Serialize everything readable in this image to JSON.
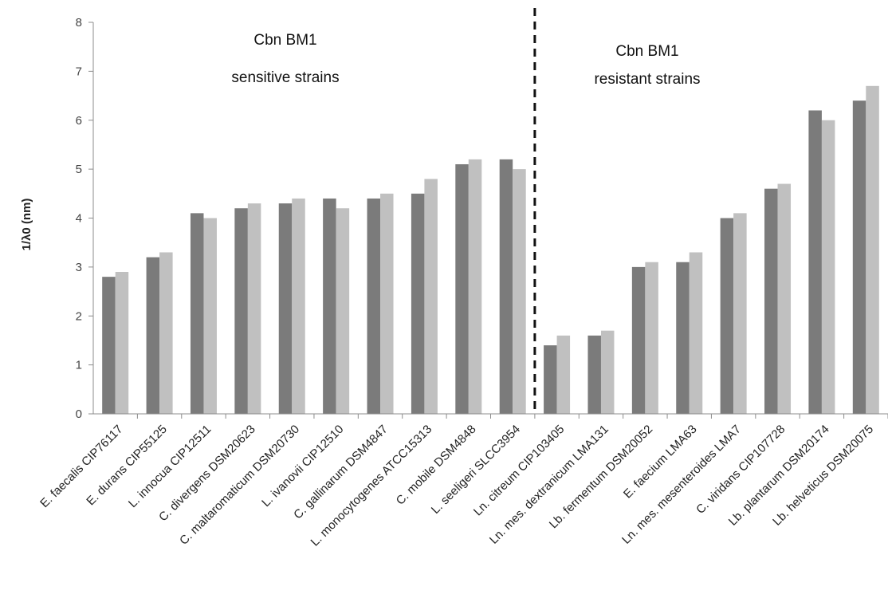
{
  "chart_data": {
    "type": "bar",
    "ylabel": "1/λ0 (nm)",
    "xlabel": "",
    "ylim": [
      0,
      8
    ],
    "yticks": [
      0,
      1,
      2,
      3,
      4,
      5,
      6,
      7,
      8
    ],
    "grid": false,
    "categories": [
      "E. faecalis CIP76117",
      "E. durans CIP55125",
      "L. innocua CIP12511",
      "C. divergens DSM20623",
      "C. maltaromaticum DSM20730",
      "L. ivanovii CIP12510",
      "C. gallinarum DSM4847",
      "L. monocytogenes ATCC15313",
      "C. mobile DSM4848",
      "L. seeligeri SLCC3954",
      "Ln. citreum CIP103405",
      "Ln. mes. dextranicum LMA131",
      "Lb. fermentum DSM20052",
      "E. faecium LMA63",
      "Ln. mes. mesenteroides LMA7",
      "C. viridans CIP107728",
      "Lb. plantarum DSM20174",
      "Lb. helveticus DSM20075"
    ],
    "series": [
      {
        "color": "#7b7b7b",
        "values": [
          2.8,
          3.2,
          4.1,
          4.2,
          4.3,
          4.4,
          4.4,
          4.5,
          5.1,
          5.2,
          1.4,
          1.6,
          3.0,
          3.1,
          4.0,
          4.6,
          6.2,
          6.4
        ]
      },
      {
        "color": "#c0c0c0",
        "values": [
          2.9,
          3.3,
          4.0,
          4.3,
          4.4,
          4.2,
          4.5,
          4.8,
          5.2,
          5.0,
          1.6,
          1.7,
          3.1,
          3.3,
          4.1,
          4.7,
          6.0,
          6.7
        ]
      }
    ],
    "divider_after_index": 9,
    "annotations": [
      {
        "line1": "Cbn BM1",
        "line2": "sensitive strains",
        "group": "sensitive"
      },
      {
        "line1": "Cbn BM1",
        "line2": "resistant strains",
        "group": "resistant"
      }
    ]
  }
}
